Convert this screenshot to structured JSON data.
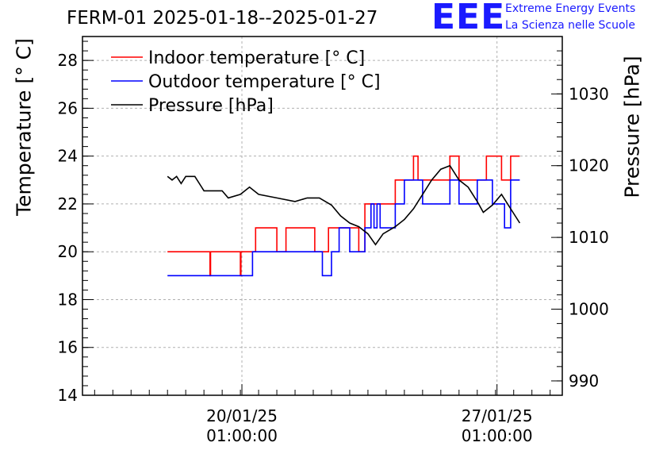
{
  "title": "FERM-01 2025-01-18--2025-01-27",
  "logo": {
    "mark": "EEE",
    "line1": "Extreme Energy Events",
    "line2": "La Scienza nelle Scuole",
    "color": "#1a1aff"
  },
  "chart_data": {
    "type": "line",
    "title": "FERM-01 2025-01-18--2025-01-27",
    "xlabel": "",
    "ylabel": "Temperature [° C]",
    "y2label": "Pressure [hPa]",
    "x_range_days_label": "2025-01-18 to 2025-01-27",
    "xlim": [
      "2025-01-15T16:00",
      "2025-01-28T20:00"
    ],
    "x_ticks": [
      {
        "x": "2025-01-20T01:00",
        "line1": "20/01/25",
        "line2": "01:00:00"
      },
      {
        "x": "2025-01-27T01:00",
        "line1": "27/01/25",
        "line2": "01:00:00"
      }
    ],
    "ylim": [
      14,
      29
    ],
    "y_ticks": [
      14,
      16,
      18,
      20,
      22,
      24,
      26,
      28
    ],
    "y2lim": [
      988,
      1038
    ],
    "y2_ticks": [
      990,
      1000,
      1010,
      1020,
      1030
    ],
    "grid": true,
    "legend_position": "top-left",
    "series": [
      {
        "name": "Indoor temperature [° C]",
        "axis": "left",
        "color": "#ff0000",
        "points": [
          [
            "2025-01-18T00:00",
            20
          ],
          [
            "2025-01-19T04:00",
            20
          ],
          [
            "2025-01-19T04:00",
            19
          ],
          [
            "2025-01-19T04:20",
            19
          ],
          [
            "2025-01-19T04:20",
            20
          ],
          [
            "2025-01-20T00:00",
            20
          ],
          [
            "2025-01-20T00:00",
            19
          ],
          [
            "2025-01-20T00:20",
            19
          ],
          [
            "2025-01-20T00:20",
            20
          ],
          [
            "2025-01-20T10:00",
            20
          ],
          [
            "2025-01-20T10:00",
            21
          ],
          [
            "2025-01-21T00:00",
            21
          ],
          [
            "2025-01-21T00:00",
            20
          ],
          [
            "2025-01-21T06:00",
            20
          ],
          [
            "2025-01-21T06:00",
            21
          ],
          [
            "2025-01-22T01:00",
            21
          ],
          [
            "2025-01-22T01:00",
            20
          ],
          [
            "2025-01-22T10:00",
            20
          ],
          [
            "2025-01-22T10:00",
            21
          ],
          [
            "2025-01-23T06:00",
            21
          ],
          [
            "2025-01-23T06:00",
            20
          ],
          [
            "2025-01-23T10:00",
            20
          ],
          [
            "2025-01-23T10:00",
            22
          ],
          [
            "2025-01-24T06:00",
            22
          ],
          [
            "2025-01-24T06:00",
            23
          ],
          [
            "2025-01-24T18:00",
            23
          ],
          [
            "2025-01-24T18:00",
            24
          ],
          [
            "2025-01-24T21:00",
            24
          ],
          [
            "2025-01-24T21:00",
            23
          ],
          [
            "2025-01-25T18:00",
            23
          ],
          [
            "2025-01-25T18:00",
            24
          ],
          [
            "2025-01-26T00:00",
            24
          ],
          [
            "2025-01-26T00:00",
            23
          ],
          [
            "2025-01-26T18:00",
            23
          ],
          [
            "2025-01-26T18:00",
            24
          ],
          [
            "2025-01-27T04:00",
            24
          ],
          [
            "2025-01-27T04:00",
            23
          ],
          [
            "2025-01-27T10:00",
            23
          ],
          [
            "2025-01-27T10:00",
            24
          ],
          [
            "2025-01-27T16:00",
            24
          ]
        ]
      },
      {
        "name": "Outdoor temperature [° C]",
        "axis": "left",
        "color": "#0000ff",
        "points": [
          [
            "2025-01-18T00:00",
            19
          ],
          [
            "2025-01-20T08:00",
            19
          ],
          [
            "2025-01-20T08:00",
            20
          ],
          [
            "2025-01-22T06:00",
            20
          ],
          [
            "2025-01-22T06:00",
            19
          ],
          [
            "2025-01-22T12:00",
            19
          ],
          [
            "2025-01-22T12:00",
            20
          ],
          [
            "2025-01-22T17:00",
            20
          ],
          [
            "2025-01-22T17:00",
            21
          ],
          [
            "2025-01-23T00:00",
            21
          ],
          [
            "2025-01-23T00:00",
            20
          ],
          [
            "2025-01-23T10:00",
            20
          ],
          [
            "2025-01-23T10:00",
            21
          ],
          [
            "2025-01-23T14:00",
            21
          ],
          [
            "2025-01-23T14:00",
            22
          ],
          [
            "2025-01-23T16:00",
            22
          ],
          [
            "2025-01-23T16:00",
            21
          ],
          [
            "2025-01-23T18:00",
            21
          ],
          [
            "2025-01-23T18:00",
            22
          ],
          [
            "2025-01-23T20:00",
            22
          ],
          [
            "2025-01-23T20:00",
            21
          ],
          [
            "2025-01-24T06:00",
            21
          ],
          [
            "2025-01-24T06:00",
            22
          ],
          [
            "2025-01-24T12:00",
            22
          ],
          [
            "2025-01-24T12:00",
            23
          ],
          [
            "2025-01-25T00:00",
            23
          ],
          [
            "2025-01-25T00:00",
            22
          ],
          [
            "2025-01-25T18:00",
            22
          ],
          [
            "2025-01-25T18:00",
            23
          ],
          [
            "2025-01-26T00:00",
            23
          ],
          [
            "2025-01-26T00:00",
            22
          ],
          [
            "2025-01-26T12:00",
            22
          ],
          [
            "2025-01-26T12:00",
            23
          ],
          [
            "2025-01-26T22:00",
            23
          ],
          [
            "2025-01-26T22:00",
            22
          ],
          [
            "2025-01-27T06:00",
            22
          ],
          [
            "2025-01-27T06:00",
            21
          ],
          [
            "2025-01-27T10:00",
            21
          ],
          [
            "2025-01-27T10:00",
            23
          ],
          [
            "2025-01-27T16:00",
            23
          ]
        ]
      },
      {
        "name": "Pressure [hPa]",
        "axis": "right",
        "color": "#000000",
        "points": [
          [
            "2025-01-18T00:00",
            1018.5
          ],
          [
            "2025-01-18T03:00",
            1018.0
          ],
          [
            "2025-01-18T06:00",
            1018.5
          ],
          [
            "2025-01-18T09:00",
            1017.5
          ],
          [
            "2025-01-18T12:00",
            1018.5
          ],
          [
            "2025-01-18T18:00",
            1018.5
          ],
          [
            "2025-01-19T00:00",
            1016.5
          ],
          [
            "2025-01-19T12:00",
            1016.5
          ],
          [
            "2025-01-19T16:00",
            1015.5
          ],
          [
            "2025-01-20T00:00",
            1016.0
          ],
          [
            "2025-01-20T06:00",
            1017.0
          ],
          [
            "2025-01-20T12:00",
            1016.0
          ],
          [
            "2025-01-21T00:00",
            1015.5
          ],
          [
            "2025-01-21T12:00",
            1015.0
          ],
          [
            "2025-01-21T20:00",
            1015.5
          ],
          [
            "2025-01-22T04:00",
            1015.5
          ],
          [
            "2025-01-22T12:00",
            1014.5
          ],
          [
            "2025-01-22T18:00",
            1013.0
          ],
          [
            "2025-01-23T00:00",
            1012.0
          ],
          [
            "2025-01-23T06:00",
            1011.5
          ],
          [
            "2025-01-23T12:00",
            1010.5
          ],
          [
            "2025-01-23T17:00",
            1009.0
          ],
          [
            "2025-01-23T22:00",
            1010.5
          ],
          [
            "2025-01-24T06:00",
            1011.5
          ],
          [
            "2025-01-24T12:00",
            1012.5
          ],
          [
            "2025-01-24T18:00",
            1014.0
          ],
          [
            "2025-01-25T00:00",
            1016.0
          ],
          [
            "2025-01-25T06:00",
            1018.0
          ],
          [
            "2025-01-25T12:00",
            1019.5
          ],
          [
            "2025-01-25T18:00",
            1020.0
          ],
          [
            "2025-01-26T00:00",
            1018.0
          ],
          [
            "2025-01-26T06:00",
            1017.0
          ],
          [
            "2025-01-26T12:00",
            1015.0
          ],
          [
            "2025-01-26T16:00",
            1013.5
          ],
          [
            "2025-01-26T22:00",
            1014.5
          ],
          [
            "2025-01-27T04:00",
            1016.0
          ],
          [
            "2025-01-27T10:00",
            1014.0
          ],
          [
            "2025-01-27T16:00",
            1012.0
          ]
        ]
      }
    ]
  }
}
